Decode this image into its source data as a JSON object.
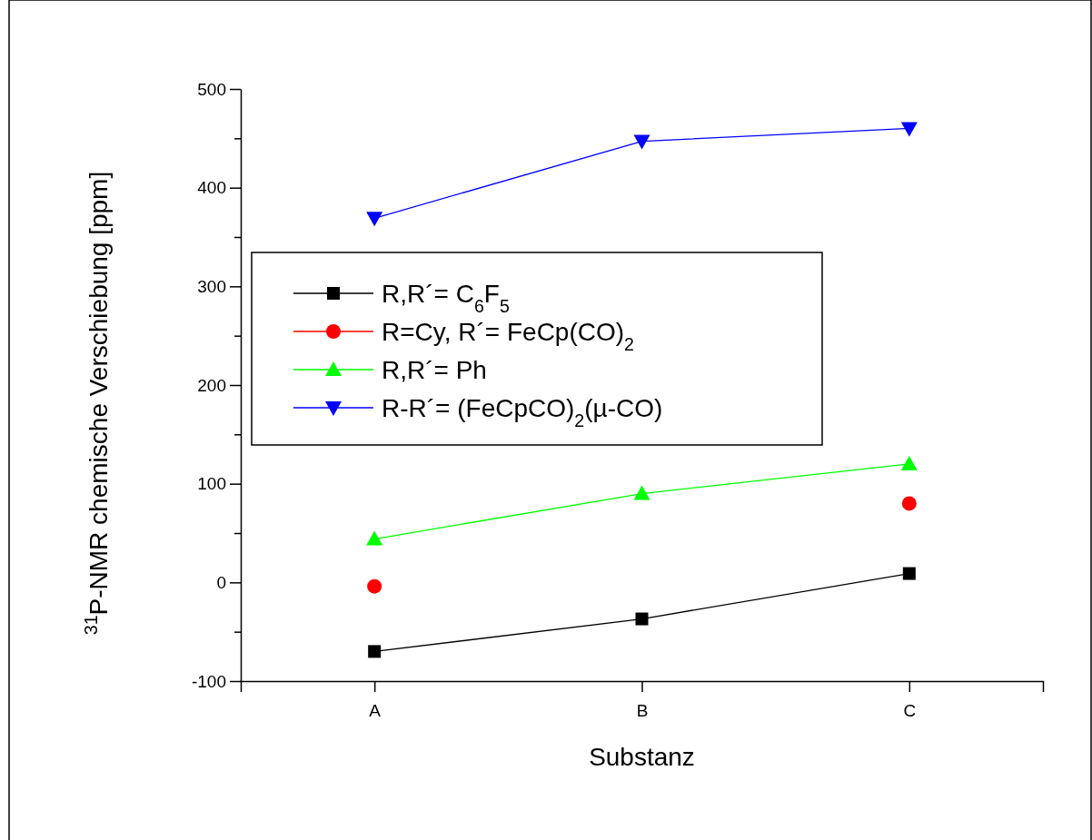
{
  "chart_data": {
    "type": "line",
    "xlabel": "Substanz",
    "ylabel": "$^{31}$P-NMR chemische Verschiebung [ppm]",
    "categories": [
      "A",
      "B",
      "C"
    ],
    "ylim": [
      -100,
      500
    ],
    "yticks": [
      -100,
      {
        "value": -50,
        "label": null
      },
      0,
      {
        "value": 50,
        "label": null
      },
      100,
      {
        "value": 150,
        "label": null
      },
      200,
      {
        "value": 250,
        "label": null
      },
      300,
      {
        "value": 350,
        "label": null
      },
      400,
      {
        "value": 450,
        "label": null
      },
      500
    ],
    "grid": false,
    "legend": "left",
    "line_style": "solid",
    "series": [
      {
        "name": "R,R´= C$_{6}$F$_{5}$",
        "color": "#000000",
        "marker": "square",
        "values": [
          -70,
          -37,
          9
        ]
      },
      {
        "name": "R=Cy, R´= FeCp(CO)$_{2}$",
        "type": "scatter",
        "color": "#ff0000",
        "marker": "circle",
        "values": [
          -4,
          null,
          80
        ]
      },
      {
        "name": "R,R´= Ph",
        "color": "#00ff00",
        "marker": "triangle",
        "values": [
          44,
          90,
          120
        ]
      },
      {
        "name": "R-R´= (FeCpCO)$_{2}$(µ-CO)",
        "color": "#0000ff",
        "marker": "triangle-down",
        "values": [
          369,
          447,
          460
        ]
      }
    ]
  }
}
